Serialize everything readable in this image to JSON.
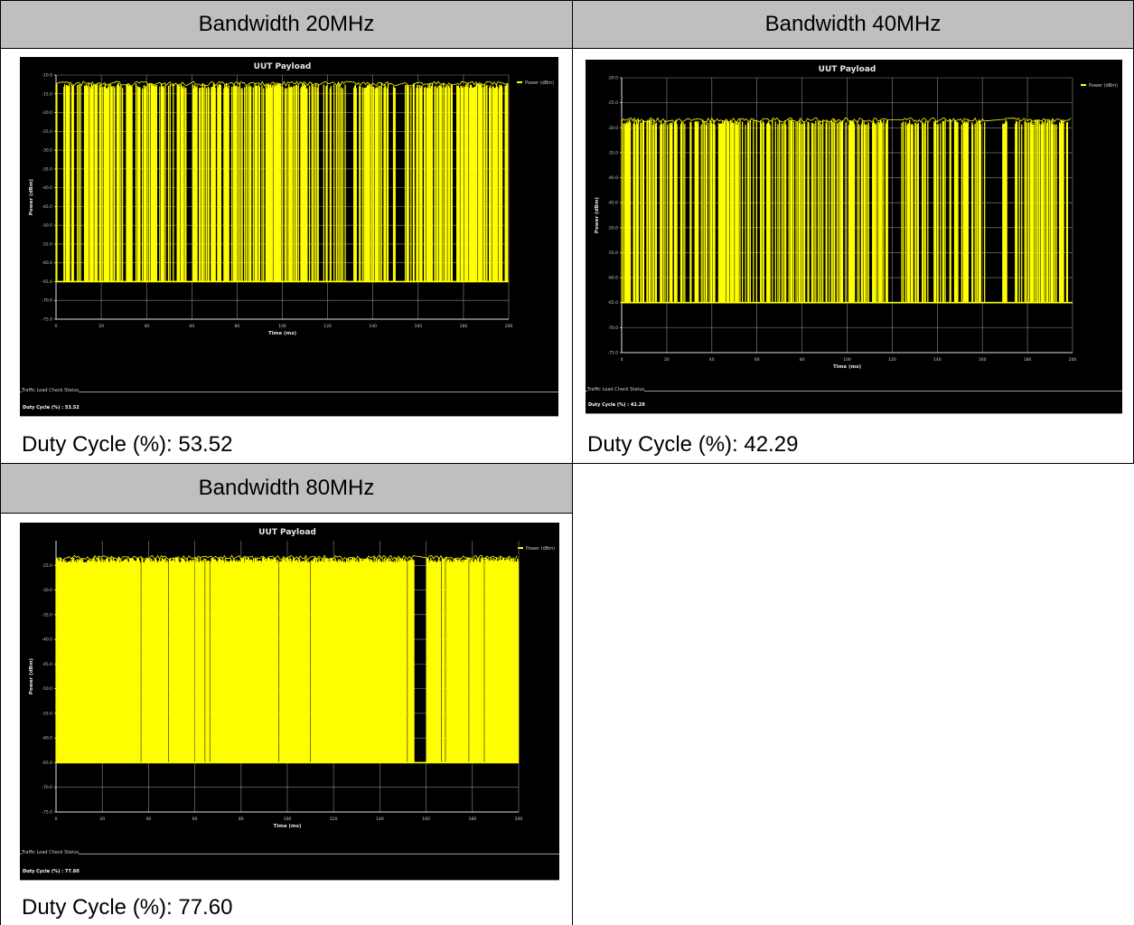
{
  "cells": [
    {
      "header": "Bandwidth 20MHz",
      "caption": "Duty Cycle (%): 53.52",
      "screenshot": {
        "title": "UUT Payload",
        "legend": "Power (dBm)",
        "ylabel": "Power (dBm)",
        "xlabel": "Time (ms)",
        "yticks": [
          "-10.0",
          "-15.0",
          "-20.0",
          "-25.0",
          "-30.0",
          "-35.0",
          "-40.0",
          "-45.0",
          "-50.0",
          "-55.0",
          "-60.0",
          "-65.0",
          "-70.0",
          "-75.0"
        ],
        "xticks": [
          "0",
          "20",
          "40",
          "60",
          "80",
          "100",
          "120",
          "140",
          "160",
          "180",
          "200"
        ],
        "status_title": "Traffic Load Check Status",
        "status_value": "Duty Cycle (%) : 53.52"
      },
      "chart_data": {
        "type": "line",
        "title": "UUT Payload",
        "xlabel": "Time (ms)",
        "ylabel": "Power (dBm)",
        "xlim": [
          0,
          200
        ],
        "ylim": [
          -75,
          -10
        ],
        "series": [
          {
            "name": "Power (dBm)",
            "on_level": -13,
            "off_level": -65,
            "duty_cycle": 53.52
          }
        ]
      }
    },
    {
      "header": "Bandwidth 40MHz",
      "caption": "Duty Cycle (%): 42.29",
      "screenshot": {
        "title": "UUT Payload",
        "legend": "Power (dBm)",
        "ylabel": "Power (dBm)",
        "xlabel": "Time (ms)",
        "yticks": [
          "-20.0",
          "-25.0",
          "-30.0",
          "-35.0",
          "-40.0",
          "-45.0",
          "-50.0",
          "-55.0",
          "-60.0",
          "-65.0",
          "-70.0",
          "-75.0"
        ],
        "xticks": [
          "0",
          "20",
          "40",
          "60",
          "80",
          "100",
          "120",
          "140",
          "160",
          "180",
          "200"
        ],
        "status_title": "Traffic Load Check Status",
        "status_value": "Duty Cycle (%) : 42.29"
      },
      "chart_data": {
        "type": "line",
        "title": "UUT Payload",
        "xlabel": "Time (ms)",
        "ylabel": "Power (dBm)",
        "xlim": [
          0,
          200
        ],
        "ylim": [
          -75,
          -20
        ],
        "series": [
          {
            "name": "Power (dBm)",
            "on_level": -29,
            "off_level": -65,
            "duty_cycle": 42.29
          }
        ]
      }
    },
    {
      "header": "Bandwidth 80MHz",
      "caption": "Duty Cycle (%): 77.60",
      "screenshot": {
        "title": "UUT Payload",
        "legend": "Power (dBm)",
        "ylabel": "Power (dBm)",
        "xlabel": "Time (ms)",
        "yticks": [
          "-25.0",
          "-30.0",
          "-35.0",
          "-40.0",
          "-45.0",
          "-50.0",
          "-55.0",
          "-60.0",
          "-65.0",
          "-70.0",
          "-75.0"
        ],
        "xticks": [
          "0",
          "20",
          "40",
          "60",
          "80",
          "100",
          "120",
          "140",
          "160",
          "180",
          "200"
        ],
        "status_title": "Traffic Load Check Status",
        "status_value": "Duty Cycle (%) : 77.60"
      },
      "chart_data": {
        "type": "line",
        "title": "UUT Payload",
        "xlabel": "Time (ms)",
        "ylabel": "Power (dBm)",
        "xlim": [
          0,
          200
        ],
        "ylim": [
          -75,
          -20
        ],
        "series": [
          {
            "name": "Power (dBm)",
            "on_level": -24,
            "off_level": -65,
            "duty_cycle": 77.6
          }
        ]
      }
    }
  ],
  "colors": {
    "trace": "#ffff00",
    "plot_bg": "#000000",
    "header_bg": "#bfbfbf",
    "gridline": "#8a8a8a"
  }
}
